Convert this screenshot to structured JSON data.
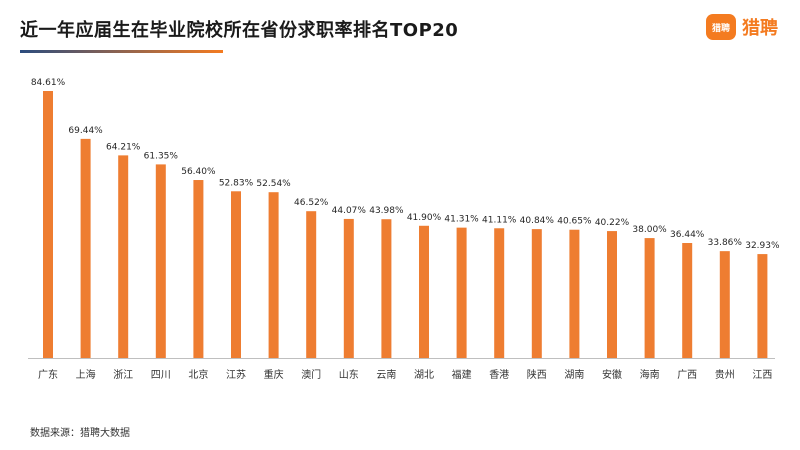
{
  "header": {
    "title": "近一年应届生在毕业院校所在省份求职率排名TOP20",
    "logo_icon_text": "猎聘",
    "logo_text": "猎聘"
  },
  "colors": {
    "bar": "#ee7d31",
    "title_line": "#f47b20",
    "axis": "#bfbfbf"
  },
  "chart_data": {
    "type": "bar",
    "title": "近一年应届生在毕业院校所在省份求职率排名TOP20",
    "xlabel": "",
    "ylabel": "",
    "ylim": [
      0,
      100
    ],
    "grid": false,
    "categories": [
      "广东",
      "上海",
      "浙江",
      "四川",
      "北京",
      "江苏",
      "重庆",
      "澳门",
      "山东",
      "云南",
      "湖北",
      "福建",
      "香港",
      "陕西",
      "湖南",
      "安徽",
      "海南",
      "广西",
      "贵州",
      "江西"
    ],
    "values": [
      84.61,
      69.44,
      64.21,
      61.35,
      56.4,
      52.83,
      52.54,
      46.52,
      44.07,
      43.98,
      41.9,
      41.31,
      41.11,
      40.84,
      40.65,
      40.22,
      38.0,
      36.44,
      33.86,
      32.93
    ],
    "labels": [
      "84.61%",
      "69.44%",
      "64.21%",
      "61.35%",
      "56.40%",
      "52.83%",
      "52.54%",
      "46.52%",
      "44.07%",
      "43.98%",
      "41.90%",
      "41.31%",
      "41.11%",
      "40.84%",
      "40.65%",
      "40.22%",
      "38.00%",
      "36.44%",
      "33.86%",
      "32.93%"
    ]
  },
  "footer": {
    "source": "数据来源：猎聘大数据"
  }
}
